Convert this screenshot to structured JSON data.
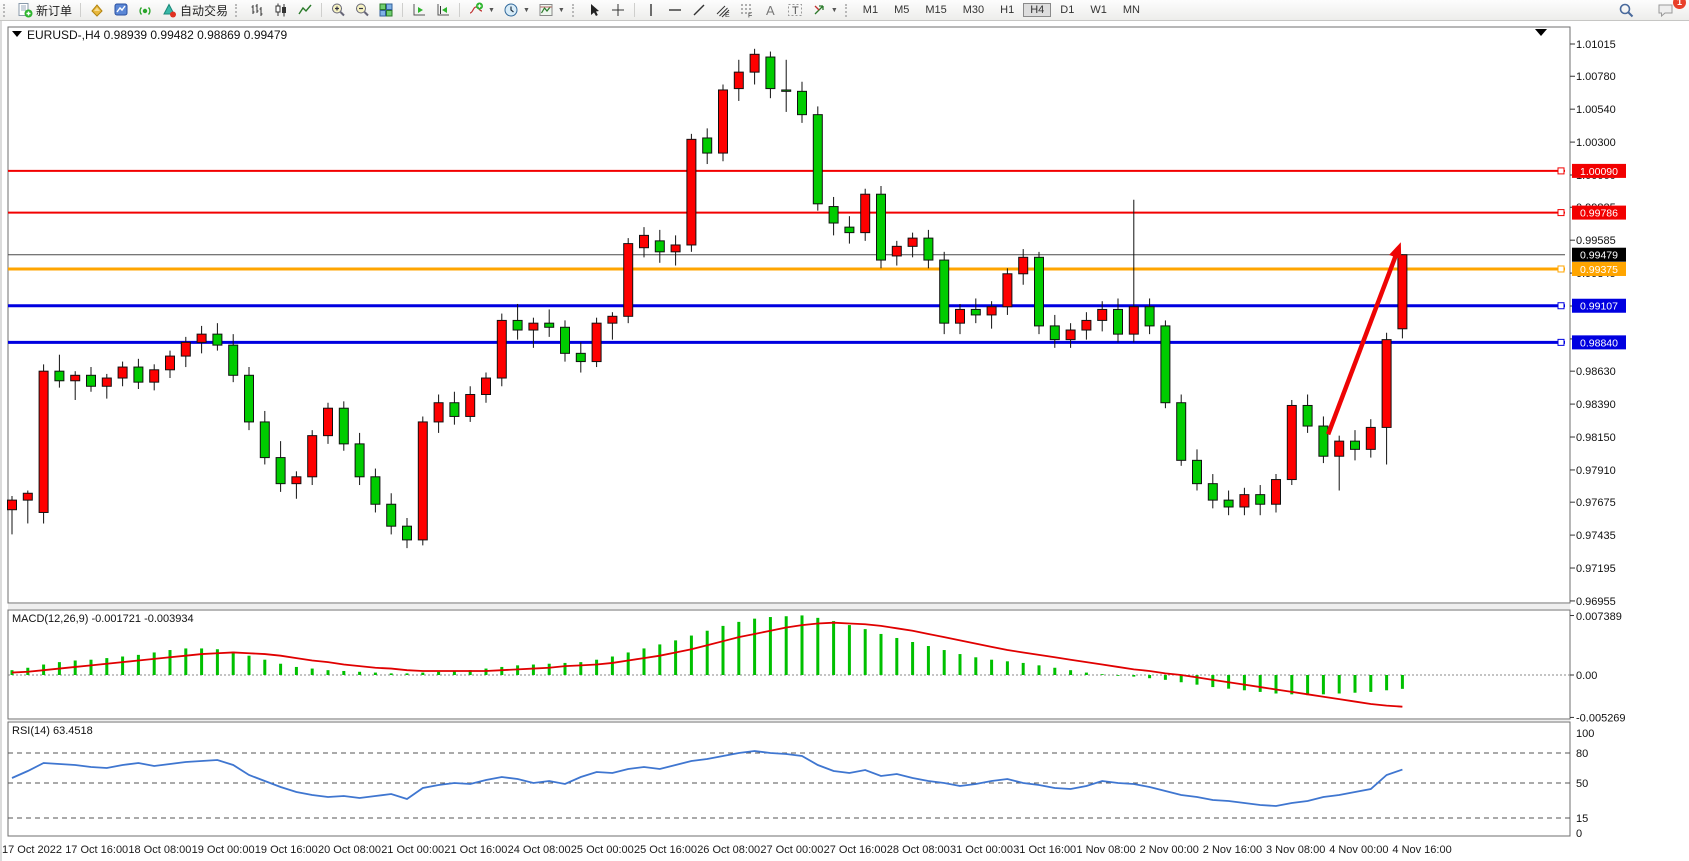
{
  "app": {
    "toolbar": {
      "new_order_label": "新订单",
      "auto_trading_label": "自动交易",
      "timeframes": [
        "M1",
        "M5",
        "M15",
        "M30",
        "H1",
        "H4",
        "D1",
        "W1",
        "MN"
      ],
      "active_timeframe": "H4",
      "notification_count": "1"
    }
  },
  "chart": {
    "symbol": "EURUSD-",
    "timeframe": "H4",
    "title": "EURUSD-,H4",
    "ohlc_text": "0.98939 0.99482 0.98869 0.99479"
  },
  "colors": {
    "bull": "#fe0000",
    "bear": "#00cc00",
    "wick": "#111111",
    "resistance": "#f20000",
    "pivot": "#ffa500",
    "support": "#0000e0",
    "current_price": "#4a4a4a",
    "arrow": "#ee0404",
    "macd_bars": "#00c000",
    "macd_signal": "#e00000",
    "rsi_line": "#3f76d0"
  },
  "chart_data": [
    {
      "type": "candlestick",
      "title": "EURUSD-,H4",
      "timeframe": "H4",
      "ohlc_display": {
        "open": "0.98939",
        "high": "0.99482",
        "low": "0.98869",
        "close": "0.99479"
      },
      "ylim": [
        0.9694,
        1.01139
      ],
      "y_ticks": [
        "1.01015",
        "1.00780",
        "1.00540",
        "1.00300",
        "1.00060",
        "0.99825",
        "0.99585",
        "0.99345",
        "0.99105",
        "0.98865",
        "0.98630",
        "0.98390",
        "0.98150",
        "0.97910",
        "0.97675",
        "0.97435",
        "0.97195",
        "0.96955"
      ],
      "x_label_interval": 4,
      "x_labels": [
        "17 Oct 2022",
        "17 Oct 16:00",
        "18 Oct 08:00",
        "19 Oct 00:00",
        "19 Oct 16:00",
        "20 Oct 08:00",
        "21 Oct 00:00",
        "21 Oct 16:00",
        "24 Oct 08:00",
        "25 Oct 00:00",
        "25 Oct 16:00",
        "26 Oct 08:00",
        "27 Oct 00:00",
        "27 Oct 16:00",
        "28 Oct 08:00",
        "31 Oct 00:00",
        "31 Oct 16:00",
        "1 Nov 08:00",
        "2 Nov 00:00",
        "2 Nov 16:00",
        "3 Nov 08:00",
        "4 Nov 00:00",
        "4 Nov 16:00"
      ],
      "candles": [
        [
          0.9762,
          0.9772,
          0.9744,
          0.9769
        ],
        [
          0.9769,
          0.9776,
          0.9752,
          0.9774
        ],
        [
          0.976,
          0.9868,
          0.9752,
          0.9863
        ],
        [
          0.9863,
          0.9875,
          0.9851,
          0.9856
        ],
        [
          0.9856,
          0.9863,
          0.9842,
          0.986
        ],
        [
          0.986,
          0.9866,
          0.9848,
          0.9852
        ],
        [
          0.9852,
          0.9861,
          0.9843,
          0.9858
        ],
        [
          0.9858,
          0.987,
          0.9852,
          0.9866
        ],
        [
          0.9866,
          0.9872,
          0.985,
          0.9855
        ],
        [
          0.9855,
          0.9868,
          0.9849,
          0.9864
        ],
        [
          0.9864,
          0.9878,
          0.9858,
          0.9874
        ],
        [
          0.9874,
          0.9888,
          0.9866,
          0.9884
        ],
        [
          0.9884,
          0.9896,
          0.9876,
          0.989
        ],
        [
          0.989,
          0.9898,
          0.9878,
          0.9882
        ],
        [
          0.9882,
          0.989,
          0.9855,
          0.986
        ],
        [
          0.986,
          0.9866,
          0.982,
          0.9826
        ],
        [
          0.9826,
          0.9834,
          0.9795,
          0.98
        ],
        [
          0.98,
          0.9812,
          0.9775,
          0.9781
        ],
        [
          0.9781,
          0.979,
          0.977,
          0.9786
        ],
        [
          0.9786,
          0.982,
          0.978,
          0.9816
        ],
        [
          0.9816,
          0.984,
          0.981,
          0.9836
        ],
        [
          0.9836,
          0.9841,
          0.9805,
          0.981
        ],
        [
          0.981,
          0.9818,
          0.978,
          0.9786
        ],
        [
          0.9786,
          0.9792,
          0.976,
          0.9766
        ],
        [
          0.9766,
          0.9774,
          0.9744,
          0.975
        ],
        [
          0.975,
          0.9756,
          0.9734,
          0.974
        ],
        [
          0.974,
          0.983,
          0.9736,
          0.9826
        ],
        [
          0.9826,
          0.9846,
          0.9818,
          0.984
        ],
        [
          0.984,
          0.9848,
          0.9824,
          0.983
        ],
        [
          0.983,
          0.9852,
          0.9826,
          0.9846
        ],
        [
          0.9846,
          0.9862,
          0.984,
          0.9858
        ],
        [
          0.9858,
          0.9905,
          0.9852,
          0.99
        ],
        [
          0.99,
          0.9912,
          0.9886,
          0.9893
        ],
        [
          0.9893,
          0.9902,
          0.988,
          0.9898
        ],
        [
          0.9898,
          0.9908,
          0.9888,
          0.9895
        ],
        [
          0.9895,
          0.99,
          0.987,
          0.9876
        ],
        [
          0.9876,
          0.9884,
          0.9862,
          0.987
        ],
        [
          0.987,
          0.9902,
          0.9866,
          0.9898
        ],
        [
          0.9898,
          0.9906,
          0.9886,
          0.9903
        ],
        [
          0.9903,
          0.996,
          0.9898,
          0.9956
        ],
        [
          0.9953,
          0.9968,
          0.9946,
          0.9962
        ],
        [
          0.9958,
          0.9966,
          0.9942,
          0.995
        ],
        [
          0.995,
          0.9962,
          0.994,
          0.9955
        ],
        [
          0.9955,
          1.0036,
          0.995,
          1.0032
        ],
        [
          1.0033,
          1.004,
          1.0014,
          1.0022
        ],
        [
          1.0022,
          1.0072,
          1.0016,
          1.0068
        ],
        [
          1.0069,
          1.009,
          1.006,
          1.0081
        ],
        [
          1.0081,
          1.0098,
          1.0072,
          1.0094
        ],
        [
          1.0092,
          1.0096,
          1.0062,
          1.0069
        ],
        [
          1.0068,
          1.009,
          1.0052,
          1.0067
        ],
        [
          1.0067,
          1.0074,
          1.0044,
          1.005
        ],
        [
          1.005,
          1.0056,
          0.998,
          0.9985
        ],
        [
          0.9983,
          0.999,
          0.9962,
          0.9971
        ],
        [
          0.9968,
          0.9976,
          0.9956,
          0.9964
        ],
        [
          0.9964,
          0.9996,
          0.9958,
          0.9992
        ],
        [
          0.9992,
          0.9998,
          0.9938,
          0.9944
        ],
        [
          0.9947,
          0.9958,
          0.994,
          0.9954
        ],
        [
          0.9954,
          0.9964,
          0.9946,
          0.996
        ],
        [
          0.996,
          0.9966,
          0.9938,
          0.9944
        ],
        [
          0.9944,
          0.995,
          0.989,
          0.9898
        ],
        [
          0.9898,
          0.9912,
          0.989,
          0.9908
        ],
        [
          0.9908,
          0.9916,
          0.9898,
          0.9904
        ],
        [
          0.9904,
          0.9914,
          0.9894,
          0.991
        ],
        [
          0.991,
          0.9938,
          0.9904,
          0.9934
        ],
        [
          0.9934,
          0.9952,
          0.9926,
          0.9946
        ],
        [
          0.9946,
          0.995,
          0.989,
          0.9896
        ],
        [
          0.9896,
          0.9904,
          0.988,
          0.9886
        ],
        [
          0.9886,
          0.9898,
          0.988,
          0.9893
        ],
        [
          0.9893,
          0.9906,
          0.9886,
          0.99
        ],
        [
          0.99,
          0.9914,
          0.9892,
          0.9908
        ],
        [
          0.9908,
          0.9916,
          0.9884,
          0.989
        ],
        [
          0.989,
          0.9988,
          0.9884,
          0.991
        ],
        [
          0.991,
          0.9916,
          0.989,
          0.9896
        ],
        [
          0.9896,
          0.99,
          0.9836,
          0.984
        ],
        [
          0.984,
          0.9846,
          0.9794,
          0.9798
        ],
        [
          0.9798,
          0.9806,
          0.9776,
          0.9781
        ],
        [
          0.9781,
          0.9788,
          0.9763,
          0.9769
        ],
        [
          0.9769,
          0.9776,
          0.9758,
          0.9764
        ],
        [
          0.9764,
          0.9778,
          0.9758,
          0.9773
        ],
        [
          0.9773,
          0.978,
          0.9758,
          0.9766
        ],
        [
          0.9766,
          0.9788,
          0.976,
          0.9784
        ],
        [
          0.9784,
          0.9842,
          0.978,
          0.9838
        ],
        [
          0.9838,
          0.9846,
          0.9818,
          0.9823
        ],
        [
          0.9823,
          0.983,
          0.9796,
          0.9801
        ],
        [
          0.9801,
          0.9816,
          0.9776,
          0.9812
        ],
        [
          0.9812,
          0.982,
          0.9798,
          0.9806
        ],
        [
          0.9806,
          0.9828,
          0.98,
          0.9822
        ],
        [
          0.9822,
          0.9891,
          0.9795,
          0.9886
        ],
        [
          0.98939,
          0.99482,
          0.98869,
          0.99479
        ]
      ],
      "hlines": [
        {
          "name": "resistance-line-1",
          "price": 1.0009,
          "color": "#f20000",
          "width": 2,
          "label": "1.00090",
          "label_bg": "#f20000",
          "marker": true
        },
        {
          "name": "resistance-line-2",
          "price": 0.99786,
          "color": "#f20000",
          "width": 2,
          "label": "0.99786",
          "label_bg": "#f20000",
          "marker": true
        },
        {
          "name": "current-price-line",
          "price": 0.99479,
          "color": "#4a4a4a",
          "width": 1,
          "label": "0.99479",
          "label_bg": "#000000",
          "marker": false
        },
        {
          "name": "pivot-line",
          "price": 0.99375,
          "color": "#ffa500",
          "width": 3,
          "label": "0.99375",
          "label_bg": "#ffa500",
          "marker": true
        },
        {
          "name": "support-line-1",
          "price": 0.99107,
          "color": "#0000e0",
          "width": 3,
          "label": "0.99107",
          "label_bg": "#0000e0",
          "marker": true
        },
        {
          "name": "support-line-2",
          "price": 0.9884,
          "color": "#0000e0",
          "width": 3,
          "label": "0.98840",
          "label_bg": "#0000e0",
          "marker": true
        }
      ],
      "arrow_annotation": {
        "from_bar": 83.3,
        "from_price": 0.9817,
        "to_bar": 87.9,
        "to_price": 0.9957,
        "color": "#ee0404"
      }
    },
    {
      "type": "bar",
      "name": "MACD",
      "params": "(12,26,9)",
      "values_text": "-0.001721 -0.003934",
      "y_ticks": [
        "0.007389",
        "0.00",
        "-0.005269"
      ],
      "y_tick_values": [
        0.007389,
        0.0,
        -0.005269
      ],
      "ylim": [
        -0.00547,
        0.00807
      ],
      "main": [
        0.0006,
        0.0009,
        0.0013,
        0.0016,
        0.0018,
        0.0019,
        0.0021,
        0.0023,
        0.0025,
        0.0028,
        0.0031,
        0.0033,
        0.0033,
        0.0032,
        0.0029,
        0.0024,
        0.0019,
        0.0014,
        0.001,
        0.0008,
        0.0006,
        0.0005,
        0.0004,
        0.0003,
        0.0002,
        0.0002,
        0.0003,
        0.0004,
        0.0005,
        0.0006,
        0.0008,
        0.001,
        0.0012,
        0.0013,
        0.0014,
        0.0015,
        0.0016,
        0.0019,
        0.0023,
        0.0028,
        0.0033,
        0.0038,
        0.0043,
        0.0049,
        0.0055,
        0.0061,
        0.0066,
        0.007,
        0.0072,
        0.0073,
        0.0074,
        0.0071,
        0.0067,
        0.0062,
        0.0057,
        0.0051,
        0.0046,
        0.0041,
        0.0036,
        0.0031,
        0.0026,
        0.0022,
        0.0019,
        0.0017,
        0.0015,
        0.0012,
        0.0009,
        0.0006,
        0.0003,
        0.0001,
        -0.0001,
        -0.0002,
        -0.0004,
        -0.0006,
        -0.0009,
        -0.0012,
        -0.0015,
        -0.0017,
        -0.0019,
        -0.0021,
        -0.0023,
        -0.0024,
        -0.0025,
        -0.0024,
        -0.0023,
        -0.0022,
        -0.0021,
        -0.0019,
        -0.001721
      ],
      "signal": [
        0.0003,
        0.0004,
        0.0006,
        0.0008,
        0.001,
        0.0012,
        0.0014,
        0.0016,
        0.0018,
        0.002,
        0.0022,
        0.0024,
        0.0026,
        0.0027,
        0.0028,
        0.0027,
        0.0026,
        0.0024,
        0.0021,
        0.0018,
        0.0016,
        0.0013,
        0.0011,
        0.0009,
        0.0008,
        0.0006,
        0.0005,
        0.0005,
        0.0005,
        0.0005,
        0.0005,
        0.0006,
        0.0007,
        0.0008,
        0.0009,
        0.0011,
        0.0012,
        0.0013,
        0.0015,
        0.0018,
        0.0021,
        0.0024,
        0.0028,
        0.0032,
        0.0037,
        0.0042,
        0.0047,
        0.0051,
        0.0055,
        0.0059,
        0.0062,
        0.0064,
        0.0065,
        0.0064,
        0.0063,
        0.0061,
        0.0058,
        0.0055,
        0.0051,
        0.0047,
        0.0043,
        0.0039,
        0.0035,
        0.0031,
        0.0028,
        0.0025,
        0.0022,
        0.0019,
        0.0016,
        0.0013,
        0.001,
        0.0007,
        0.0005,
        0.0002,
        0.0,
        -0.0003,
        -0.0006,
        -0.0009,
        -0.0012,
        -0.0015,
        -0.0018,
        -0.0021,
        -0.0024,
        -0.0027,
        -0.003,
        -0.0033,
        -0.0036,
        -0.0038,
        -0.003934
      ]
    },
    {
      "type": "line",
      "name": "RSI",
      "params": "(14)",
      "value_text": "63.4518",
      "ylim": [
        0,
        100
      ],
      "levels": [
        80,
        50,
        15
      ],
      "y_ticks": [
        "100",
        "80",
        "50",
        "15",
        "0"
      ],
      "y_tick_values": [
        100,
        80,
        50,
        15,
        0
      ],
      "values": [
        55,
        62,
        70,
        69,
        68,
        66,
        65,
        68,
        70,
        67,
        69,
        71,
        72,
        73,
        68,
        58,
        52,
        46,
        41,
        38,
        36,
        37,
        35,
        37,
        39,
        34,
        45,
        48,
        50,
        49,
        53,
        56,
        54,
        50,
        52,
        49,
        56,
        61,
        60,
        64,
        66,
        64,
        68,
        72,
        74,
        77,
        80,
        82,
        80,
        79,
        77,
        68,
        62,
        60,
        63,
        57,
        59,
        55,
        52,
        50,
        47,
        49,
        52,
        54,
        50,
        48,
        45,
        44,
        47,
        52,
        50,
        49,
        46,
        42,
        38,
        36,
        33,
        32,
        30,
        28,
        27,
        30,
        32,
        36,
        38,
        41,
        44,
        58,
        63.4518
      ]
    }
  ]
}
